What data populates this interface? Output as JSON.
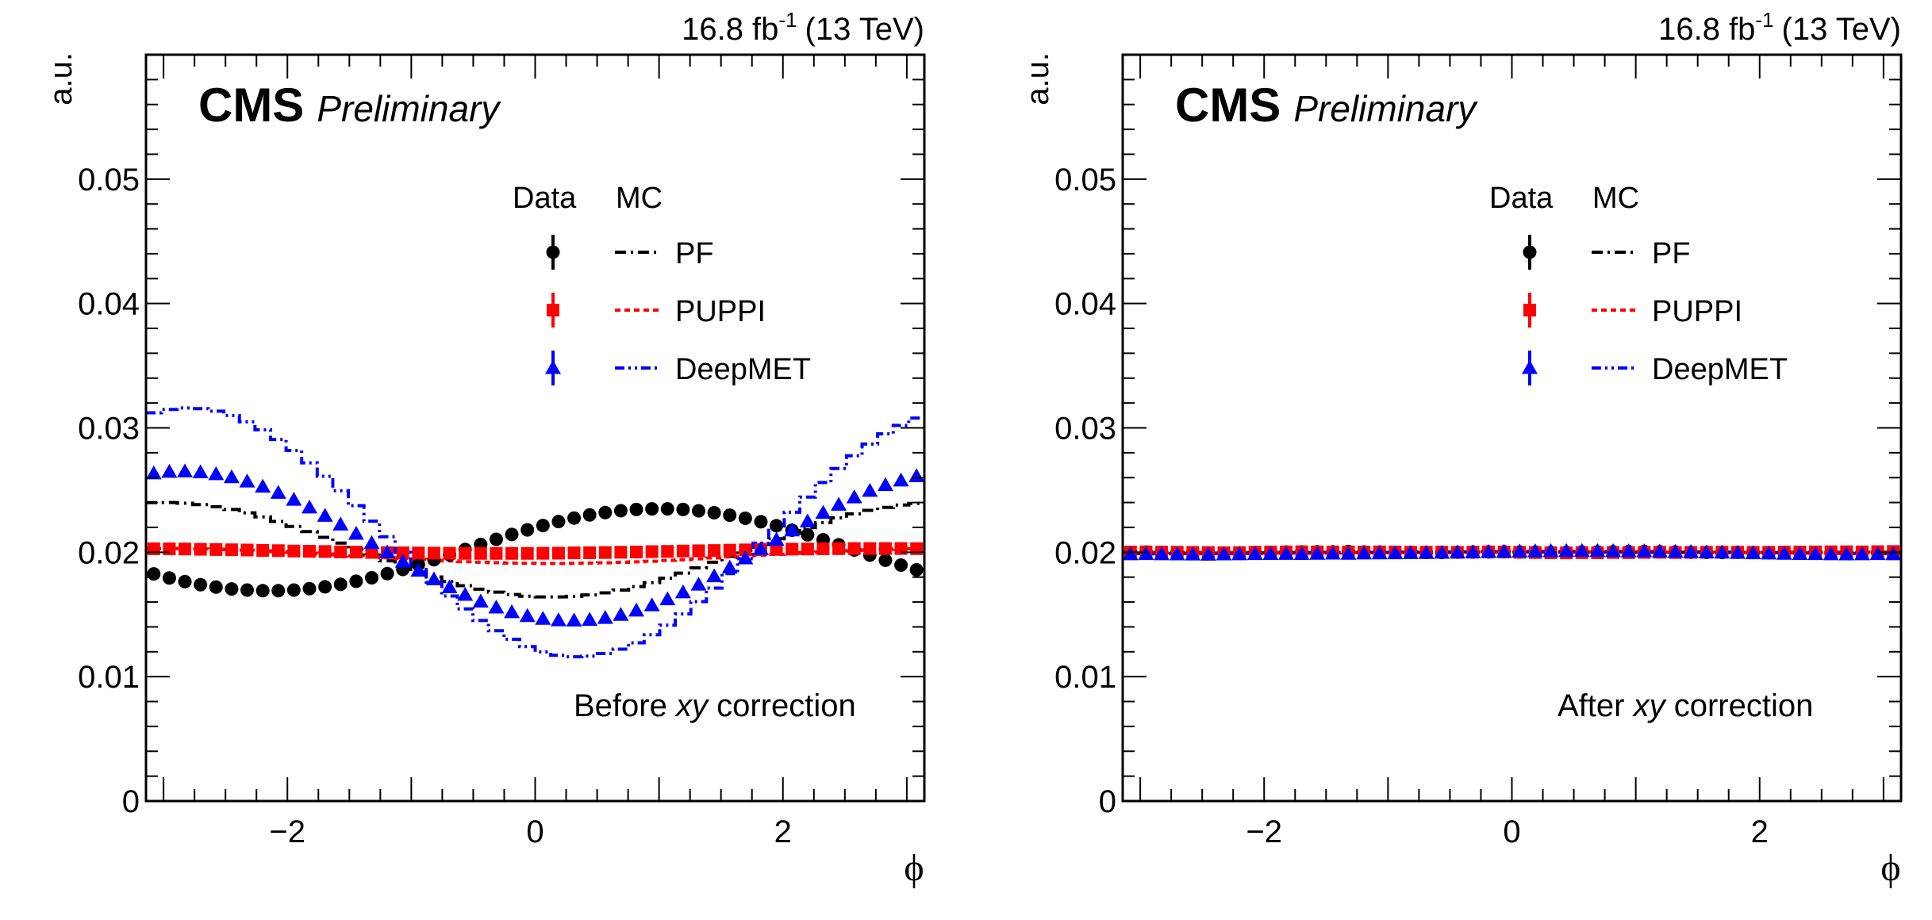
{
  "figure": {
    "panels_count": 2
  },
  "chart_data": [
    {
      "type": "scatter",
      "panel": "left",
      "lumi_label": "16.8 fb",
      "lumi_exponent": "-1",
      "energy_label": "(13 TeV)",
      "experiment": "CMS",
      "status": "Preliminary",
      "annotation_prefix": "Before ",
      "annotation_italic": "xy",
      "annotation_suffix": " correction",
      "xlabel": "ϕ",
      "ylabel": "a.u.",
      "xlim": [
        -3.14159,
        3.14159
      ],
      "ylim": [
        0,
        0.06
      ],
      "xticks": [
        -2,
        0,
        2
      ],
      "xtick_labels": [
        "−2",
        "0",
        "2"
      ],
      "yticks": [
        0,
        0.01,
        0.02,
        0.03,
        0.04,
        0.05
      ],
      "ytick_labels": [
        "0",
        "0.01",
        "0.02",
        "0.03",
        "0.04",
        "0.05"
      ],
      "grid": false,
      "legend": {
        "placement": "top-center",
        "column_headers": [
          "Data",
          "MC"
        ],
        "entries": [
          "PF",
          "PUPPI",
          "DeepMET"
        ]
      },
      "bins": 50,
      "series": [
        {
          "name": "PF",
          "kind": "data",
          "marker": "circle",
          "color": "#000000",
          "values": [
            0.01826,
            0.01793,
            0.01764,
            0.01739,
            0.0172,
            0.01705,
            0.01696,
            0.01691,
            0.01691,
            0.01696,
            0.01707,
            0.01722,
            0.01742,
            0.01767,
            0.01795,
            0.01828,
            0.01862,
            0.019,
            0.0194,
            0.0198,
            0.02022,
            0.02063,
            0.02104,
            0.02143,
            0.0218,
            0.02215,
            0.02247,
            0.02275,
            0.023,
            0.02319,
            0.02334,
            0.02344,
            0.02349,
            0.02349,
            0.02344,
            0.02333,
            0.02318,
            0.02298,
            0.02273,
            0.02245,
            0.02213,
            0.02177,
            0.0214,
            0.021,
            0.0206,
            0.02018,
            0.01977,
            0.01936,
            0.01897,
            0.01859
          ]
        },
        {
          "name": "PUPPI",
          "kind": "data",
          "marker": "square",
          "color": "#ff0000",
          "values": [
            0.02028,
            0.02027,
            0.02026,
            0.02024,
            0.02022,
            0.0202,
            0.02018,
            0.02015,
            0.02013,
            0.0201,
            0.02008,
            0.02006,
            0.02003,
            0.02001,
            0.01999,
            0.01997,
            0.01995,
            0.01994,
            0.01993,
            0.01992,
            0.01991,
            0.01991,
            0.01991,
            0.01991,
            0.01991,
            0.01992,
            0.01993,
            0.01995,
            0.01996,
            0.01998,
            0.02,
            0.02002,
            0.02005,
            0.02007,
            0.0201,
            0.02012,
            0.02014,
            0.02017,
            0.02019,
            0.02021,
            0.02023,
            0.02025,
            0.02026,
            0.02028,
            0.02029,
            0.0203,
            0.0203,
            0.0203,
            0.0203,
            0.02029
          ]
        },
        {
          "name": "DeepMET",
          "kind": "data",
          "marker": "triangle",
          "color": "#0000ff",
          "values": [
            0.02634,
            0.02647,
            0.0265,
            0.02643,
            0.02628,
            0.02603,
            0.02569,
            0.02527,
            0.02478,
            0.02422,
            0.0236,
            0.02293,
            0.02223,
            0.02149,
            0.02074,
            0.01999,
            0.01924,
            0.01852,
            0.01783,
            0.01718,
            0.01658,
            0.01604,
            0.01556,
            0.01518,
            0.01487,
            0.01465,
            0.01453,
            0.01451,
            0.01457,
            0.01472,
            0.01497,
            0.01531,
            0.01573,
            0.01622,
            0.01678,
            0.0174,
            0.01807,
            0.01877,
            0.01951,
            0.02026,
            0.02101,
            0.02176,
            0.02248,
            0.02317,
            0.02382,
            0.02441,
            0.02494,
            0.0254,
            0.02577,
            0.02612
          ]
        },
        {
          "name": "PF",
          "kind": "mc",
          "line": "dash-dot",
          "color": "#000000",
          "values": [
            0.02399,
            0.024,
            0.02394,
            0.02383,
            0.02366,
            0.02344,
            0.02317,
            0.02284,
            0.02248,
            0.02208,
            0.02166,
            0.0212,
            0.02074,
            0.02026,
            0.01978,
            0.01931,
            0.01886,
            0.01842,
            0.01801,
            0.01765,
            0.01731,
            0.01703,
            0.01679,
            0.0166,
            0.01647,
            0.01641,
            0.01641,
            0.01646,
            0.01657,
            0.01674,
            0.01696,
            0.01724,
            0.01756,
            0.01792,
            0.01832,
            0.01875,
            0.0192,
            0.01967,
            0.02014,
            0.02062,
            0.02109,
            0.02154,
            0.02198,
            0.02238,
            0.02276,
            0.02309,
            0.02337,
            0.02361,
            0.0238,
            0.02393
          ]
        },
        {
          "name": "PUPPI",
          "kind": "mc",
          "line": "dotted",
          "color": "#ff0000",
          "values": [
            0.0203,
            0.0203,
            0.02029,
            0.02027,
            0.02025,
            0.02021,
            0.02017,
            0.02012,
            0.02006,
            0.02,
            0.01993,
            0.01986,
            0.01978,
            0.01971,
            0.01963,
            0.01956,
            0.01949,
            0.01942,
            0.01935,
            0.0193,
            0.01924,
            0.0192,
            0.01916,
            0.01913,
            0.01911,
            0.0191,
            0.0191,
            0.01911,
            0.01913,
            0.01915,
            0.01919,
            0.01923,
            0.01928,
            0.01934,
            0.0194,
            0.01947,
            0.01954,
            0.01962,
            0.01969,
            0.01977,
            0.01984,
            0.01991,
            0.01998,
            0.02004,
            0.0201,
            0.02016,
            0.0202,
            0.02024,
            0.02027,
            0.02029
          ]
        },
        {
          "name": "DeepMET",
          "kind": "mc",
          "line": "dash-dot-dot",
          "color": "#0000ff",
          "values": [
            0.03121,
            0.03148,
            0.0316,
            0.03155,
            0.03135,
            0.031,
            0.03049,
            0.02985,
            0.02907,
            0.02818,
            0.02719,
            0.02611,
            0.02495,
            0.02374,
            0.0225,
            0.02125,
            0.02,
            0.01877,
            0.01759,
            0.01648,
            0.01545,
            0.01451,
            0.01369,
            0.013,
            0.01242,
            0.01199,
            0.01172,
            0.0116,
            0.01165,
            0.01186,
            0.01221,
            0.01272,
            0.01337,
            0.01414,
            0.01504,
            0.01603,
            0.01712,
            0.01828,
            0.01948,
            0.02073,
            0.02198,
            0.02322,
            0.02444,
            0.02561,
            0.02673,
            0.02776,
            0.0287,
            0.02952,
            0.0302,
            0.03079
          ]
        }
      ]
    },
    {
      "type": "scatter",
      "panel": "right",
      "lumi_label": "16.8 fb",
      "lumi_exponent": "-1",
      "energy_label": "(13 TeV)",
      "experiment": "CMS",
      "status": "Preliminary",
      "annotation_prefix": "After ",
      "annotation_italic": "xy",
      "annotation_suffix": " correction",
      "xlabel": "ϕ",
      "ylabel": "a.u.",
      "xlim": [
        -3.14159,
        3.14159
      ],
      "ylim": [
        0,
        0.06
      ],
      "xticks": [
        -2,
        0,
        2
      ],
      "xtick_labels": [
        "−2",
        "0",
        "2"
      ],
      "yticks": [
        0,
        0.01,
        0.02,
        0.03,
        0.04,
        0.05
      ],
      "ytick_labels": [
        "0",
        "0.01",
        "0.02",
        "0.03",
        "0.04",
        "0.05"
      ],
      "grid": false,
      "legend": {
        "placement": "top-center",
        "column_headers": [
          "Data",
          "MC"
        ],
        "entries": [
          "PF",
          "PUPPI",
          "DeepMET"
        ]
      },
      "bins": 50,
      "series": [
        {
          "name": "PF",
          "kind": "data",
          "marker": "circle",
          "color": "#000000",
          "values": [
            0.02,
            0.02001,
            0.01998,
            0.01996,
            0.01995,
            0.01993,
            0.01994,
            0.01995,
            0.01998,
            0.02,
            0.02002,
            0.02003,
            0.02004,
            0.02003,
            0.02006,
            0.02002,
            0.02001,
            0.02,
            0.01999,
            0.01999,
            0.01998,
            0.02,
            0.02002,
            0.02003,
            0.02004,
            0.02002,
            0.02001,
            0.02,
            0.01999,
            0.02002,
            0.02003,
            0.02004,
            0.02005,
            0.02006,
            0.02004,
            0.02002,
            0.02,
            0.01999,
            0.01998,
            0.02,
            0.01998,
            0.01996,
            0.01997,
            0.01996,
            0.01995,
            0.01996,
            0.01996,
            0.01997,
            0.01999,
            0.01997
          ]
        },
        {
          "name": "PUPPI",
          "kind": "data",
          "marker": "square",
          "color": "#ff0000",
          "values": [
            0.02002,
            0.02003,
            0.02001,
            0.02,
            0.01999,
            0.01998,
            0.01996,
            0.01997,
            0.02,
            0.02002,
            0.02003,
            0.02004,
            0.02003,
            0.02002,
            0.02002,
            0.02001,
            0.02003,
            0.02002,
            0.02,
            0.02,
            0.02001,
            0.01999,
            0.02001,
            0.02003,
            0.02002,
            0.02,
            0.01998,
            0.01996,
            0.01995,
            0.01997,
            0.01996,
            0.01998,
            0.01997,
            0.01999,
            0.02,
            0.01998,
            0.01999,
            0.02,
            0.02001,
            0.02,
            0.01999,
            0.02,
            0.02001,
            0.02002,
            0.02003,
            0.02004,
            0.02004,
            0.02003,
            0.02005,
            0.02006
          ]
        },
        {
          "name": "DeepMET",
          "kind": "data",
          "marker": "triangle",
          "color": "#0000ff",
          "values": [
            0.01984,
            0.01985,
            0.01984,
            0.01983,
            0.01982,
            0.01981,
            0.01983,
            0.01984,
            0.01985,
            0.01986,
            0.01987,
            0.01986,
            0.01988,
            0.01989,
            0.01988,
            0.0199,
            0.01991,
            0.01992,
            0.01993,
            0.01994,
            0.01996,
            0.01998,
            0.02,
            0.02002,
            0.02004,
            0.02006,
            0.02008,
            0.02009,
            0.0201,
            0.02011,
            0.0201,
            0.02009,
            0.02008,
            0.02008,
            0.02006,
            0.02004,
            0.02002,
            0.01999,
            0.01997,
            0.01995,
            0.01992,
            0.0199,
            0.01988,
            0.01986,
            0.01985,
            0.01984,
            0.01983,
            0.01984,
            0.01985,
            0.01984
          ]
        },
        {
          "name": "PF",
          "kind": "mc",
          "line": "dash-dot",
          "color": "#000000",
          "values": [
            0.0199,
            0.0199,
            0.01991,
            0.01991,
            0.01992,
            0.01992,
            0.01993,
            0.01993,
            0.01994,
            0.01995,
            0.01996,
            0.01996,
            0.01997,
            0.01997,
            0.01998,
            0.01998,
            0.01999,
            0.01999,
            0.02,
            0.02,
            0.02,
            0.02001,
            0.02001,
            0.02001,
            0.02002,
            0.02002,
            0.02002,
            0.02002,
            0.02002,
            0.02002,
            0.02001,
            0.02001,
            0.02001,
            0.02,
            0.02,
            0.02,
            0.01999,
            0.01999,
            0.01998,
            0.01998,
            0.01997,
            0.01997,
            0.01996,
            0.01996,
            0.01995,
            0.01995,
            0.01994,
            0.01994,
            0.01993,
            0.01993
          ]
        },
        {
          "name": "PUPPI",
          "kind": "mc",
          "line": "dotted",
          "color": "#ff0000",
          "values": [
            0.02,
            0.02,
            0.02,
            0.01999,
            0.01999,
            0.01999,
            0.01999,
            0.01999,
            0.01999,
            0.02,
            0.02,
            0.02,
            0.02,
            0.02,
            0.02,
            0.02,
            0.02,
            0.02,
            0.02,
            0.02,
            0.02,
            0.02,
            0.02,
            0.02,
            0.02,
            0.02,
            0.02,
            0.02,
            0.02,
            0.02,
            0.02,
            0.02,
            0.02,
            0.02,
            0.02,
            0.02,
            0.02,
            0.02,
            0.02,
            0.02,
            0.02,
            0.02,
            0.02001,
            0.02001,
            0.02001,
            0.02001,
            0.02001,
            0.02001,
            0.02001,
            0.02001
          ]
        },
        {
          "name": "DeepMET",
          "kind": "mc",
          "line": "dash-dot-dot",
          "color": "#0000ff",
          "values": [
            0.01988,
            0.01988,
            0.01988,
            0.01988,
            0.01989,
            0.01989,
            0.0199,
            0.0199,
            0.01991,
            0.01992,
            0.01993,
            0.01993,
            0.01994,
            0.01995,
            0.01996,
            0.01997,
            0.01998,
            0.01999,
            0.02,
            0.02001,
            0.02002,
            0.02003,
            0.02004,
            0.02005,
            0.02005,
            0.02006,
            0.02006,
            0.02007,
            0.02007,
            0.02007,
            0.02007,
            0.02006,
            0.02006,
            0.02005,
            0.02005,
            0.02004,
            0.02003,
            0.02002,
            0.02001,
            0.02,
            0.01999,
            0.01997,
            0.01996,
            0.01995,
            0.01994,
            0.01993,
            0.01992,
            0.01991,
            0.0199,
            0.01989
          ]
        }
      ]
    }
  ]
}
